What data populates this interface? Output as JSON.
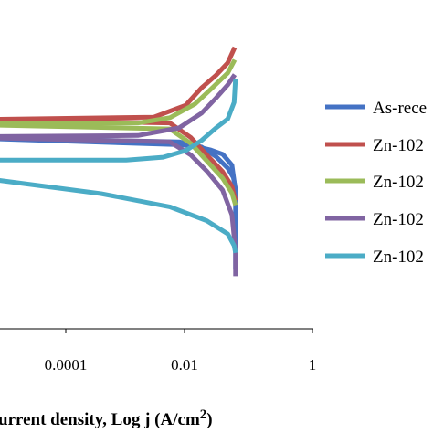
{
  "chart_data": {
    "type": "line",
    "title": "",
    "xlabel": "urrent density, Log j (A/cm",
    "xlabel_superscript": "2",
    "xlabel_close": ")",
    "ylabel": "",
    "x_scale": "log",
    "xlim": [
      1e-07,
      1
    ],
    "ylim": [
      0,
      1
    ],
    "x_ticks": [
      {
        "value": 0.0001,
        "label": "0.0001"
      },
      {
        "value": 0.01,
        "label": "0.01"
      },
      {
        "value": 1,
        "label": "1"
      }
    ],
    "grid": false,
    "legend": "right",
    "series": [
      {
        "name": "As-rece",
        "color": "#4472C4",
        "anodic": [
          [
            1e-07,
            0.583
          ],
          [
            0.003,
            0.56
          ],
          [
            0.006,
            0.555
          ],
          [
            0.012,
            0.544
          ],
          [
            0.02,
            0.531
          ],
          [
            0.03,
            0.498
          ],
          [
            0.035,
            0.42
          ],
          [
            0.035,
            0.18
          ]
        ],
        "cathodic": [
          [
            1e-07,
            0.583
          ],
          [
            0.003,
            0.569
          ],
          [
            0.008,
            0.553
          ],
          [
            0.015,
            0.524
          ],
          [
            0.025,
            0.489
          ],
          [
            0.032,
            0.46
          ],
          [
            0.035,
            0.425
          ]
        ]
      },
      {
        "name": "Zn-102",
        "color": "#C0504D",
        "anodic": [
          [
            3e-07,
            0.636
          ],
          [
            0.001,
            0.644
          ],
          [
            0.004,
            0.68
          ],
          [
            0.008,
            0.733
          ],
          [
            0.015,
            0.771
          ],
          [
            0.025,
            0.809
          ],
          [
            0.034,
            0.856
          ]
        ],
        "cathodic": [
          [
            3e-07,
            0.636
          ],
          [
            0.002,
            0.626
          ],
          [
            0.005,
            0.582
          ],
          [
            0.01,
            0.529
          ],
          [
            0.02,
            0.478
          ],
          [
            0.03,
            0.433
          ],
          [
            0.035,
            0.39
          ]
        ]
      },
      {
        "name": "Zn-102",
        "color": "#9BBB59",
        "anodic": [
          [
            1e-07,
            0.623
          ],
          [
            0.0005,
            0.626
          ],
          [
            0.002,
            0.642
          ],
          [
            0.006,
            0.684
          ],
          [
            0.012,
            0.729
          ],
          [
            0.025,
            0.778
          ],
          [
            0.034,
            0.818
          ]
        ],
        "cathodic": [
          [
            1e-07,
            0.623
          ],
          [
            0.002,
            0.608
          ],
          [
            0.005,
            0.564
          ],
          [
            0.01,
            0.511
          ],
          [
            0.02,
            0.458
          ],
          [
            0.03,
            0.413
          ],
          [
            0.035,
            0.376
          ]
        ]
      },
      {
        "name": "Zn-102",
        "color": "#8064A2",
        "anodic": [
          [
            1e-07,
            0.584
          ],
          [
            0.0005,
            0.588
          ],
          [
            0.003,
            0.611
          ],
          [
            0.008,
            0.656
          ],
          [
            0.015,
            0.702
          ],
          [
            0.025,
            0.742
          ],
          [
            0.034,
            0.773
          ]
        ],
        "cathodic": [
          [
            1e-07,
            0.584
          ],
          [
            0.002,
            0.569
          ],
          [
            0.005,
            0.529
          ],
          [
            0.01,
            0.48
          ],
          [
            0.02,
            0.422
          ],
          [
            0.03,
            0.347
          ],
          [
            0.035,
            0.236
          ],
          [
            0.035,
            0.16
          ]
        ]
      },
      {
        "name": "Zn-102",
        "color": "#4BACC6",
        "anodic": [
          [
            1e-07,
            0.513
          ],
          [
            0.0003,
            0.513
          ],
          [
            0.0015,
            0.522
          ],
          [
            0.004,
            0.542
          ],
          [
            0.008,
            0.573
          ],
          [
            0.015,
            0.611
          ],
          [
            0.025,
            0.638
          ],
          [
            0.033,
            0.689
          ],
          [
            0.035,
            0.76
          ]
        ],
        "cathodic": [
          [
            1e-07,
            0.513
          ],
          [
            3e-07,
            0.482
          ],
          [
            1e-06,
            0.453
          ],
          [
            0.0001,
            0.411
          ],
          [
            0.002,
            0.371
          ],
          [
            0.01,
            0.329
          ],
          [
            0.025,
            0.289
          ],
          [
            0.033,
            0.253
          ],
          [
            0.035,
            0.231
          ]
        ]
      }
    ]
  }
}
